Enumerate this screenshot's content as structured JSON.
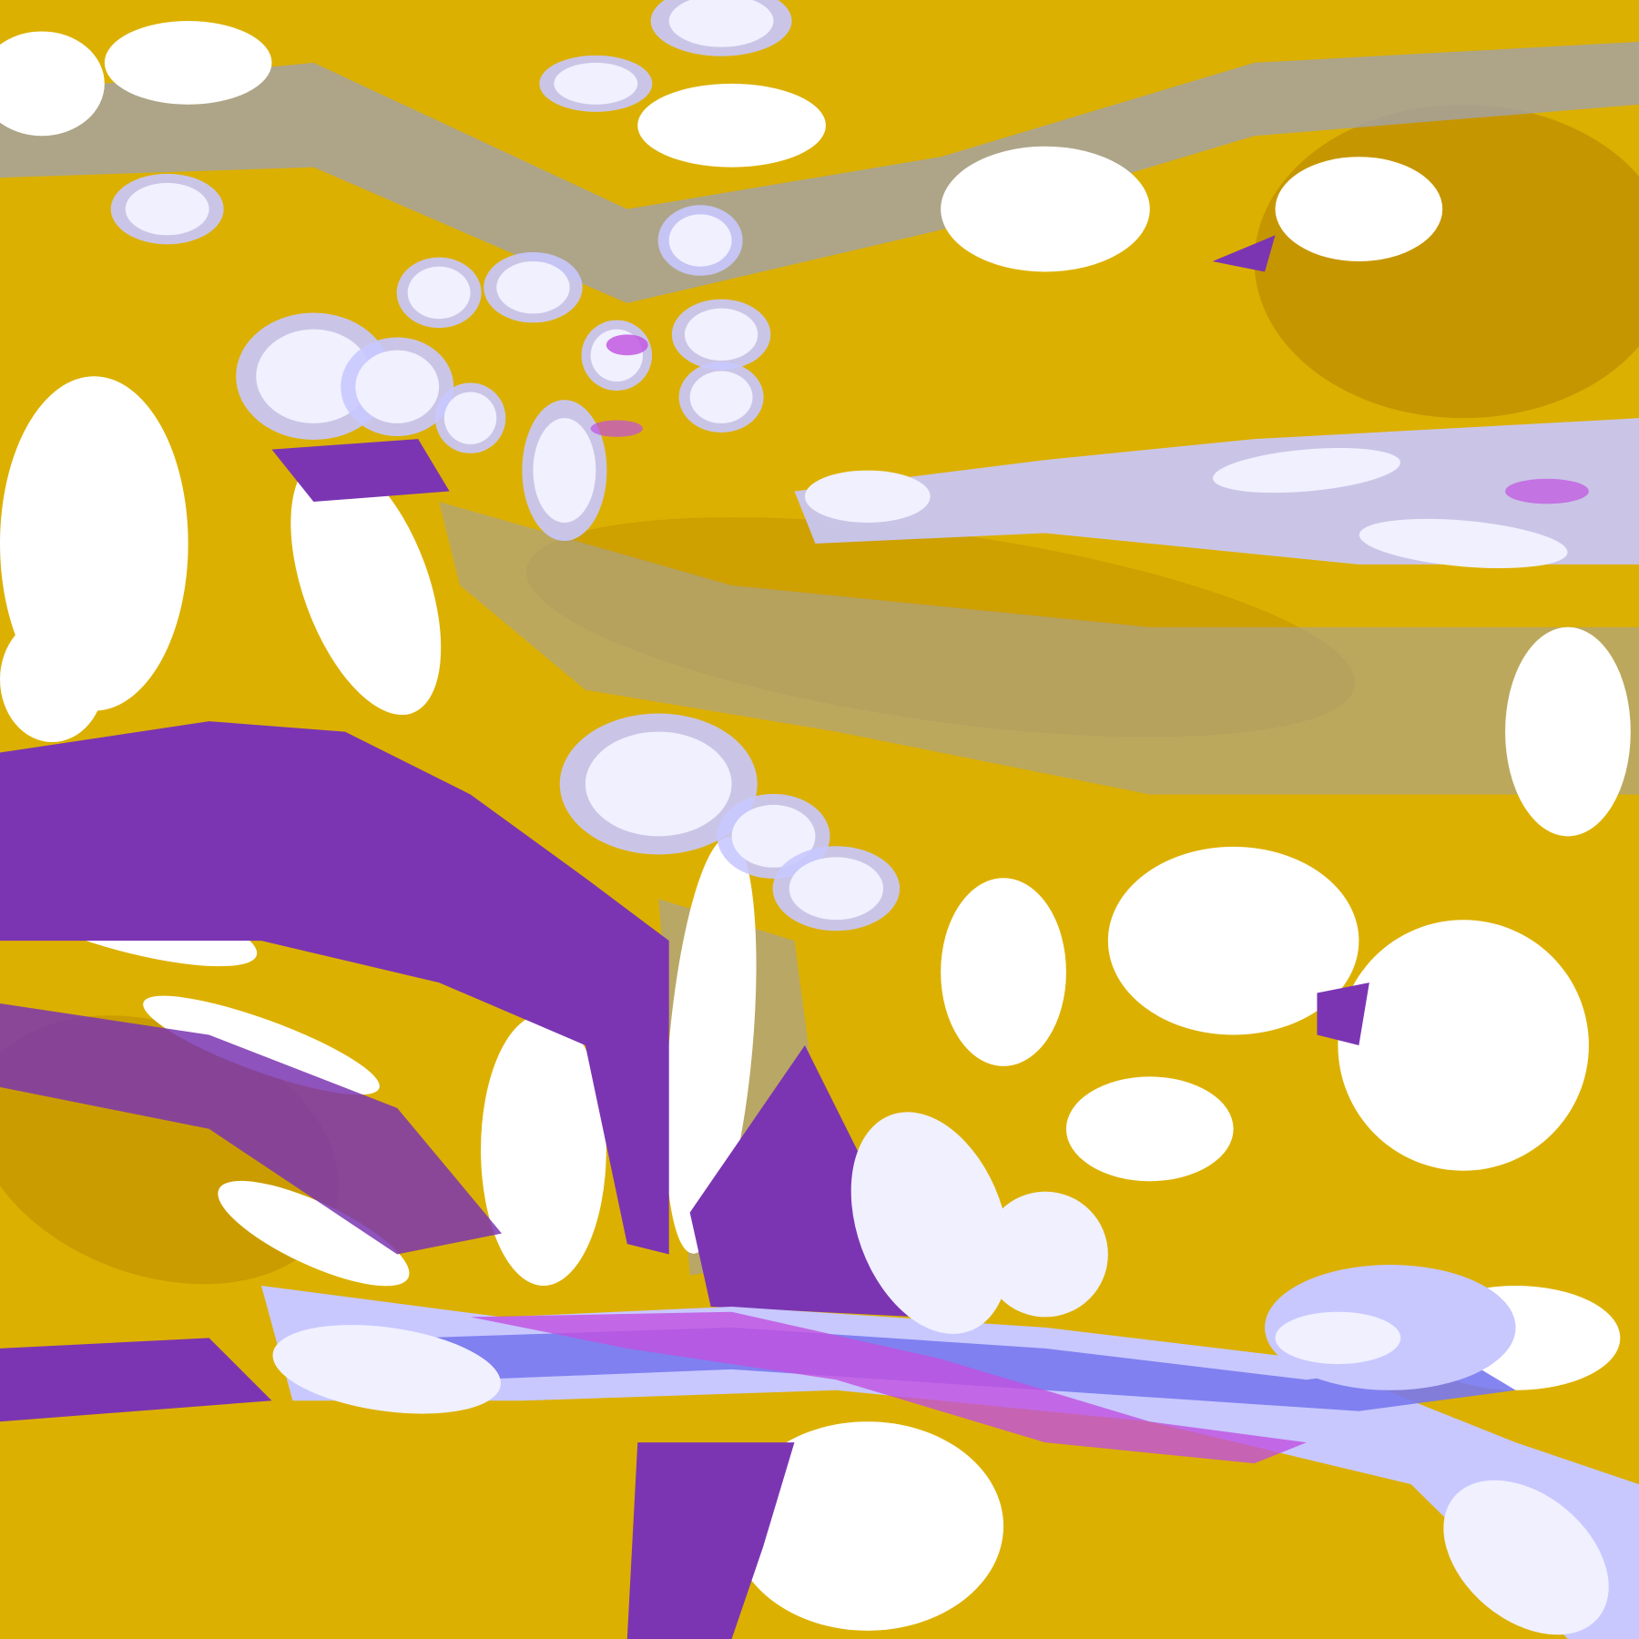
{
  "image": {
    "kind": "satellite cloud classification",
    "palette": {
      "clear": "#ffffff",
      "gold": "#dcb000",
      "dark_gold": "#c09000",
      "purple": "#7b35b2",
      "gray": "#a2a2aa",
      "lavender": "#c8c8ff",
      "pale": "#f0f0ff",
      "blue": "#7878f0",
      "magenta": "#c050e0"
    }
  }
}
